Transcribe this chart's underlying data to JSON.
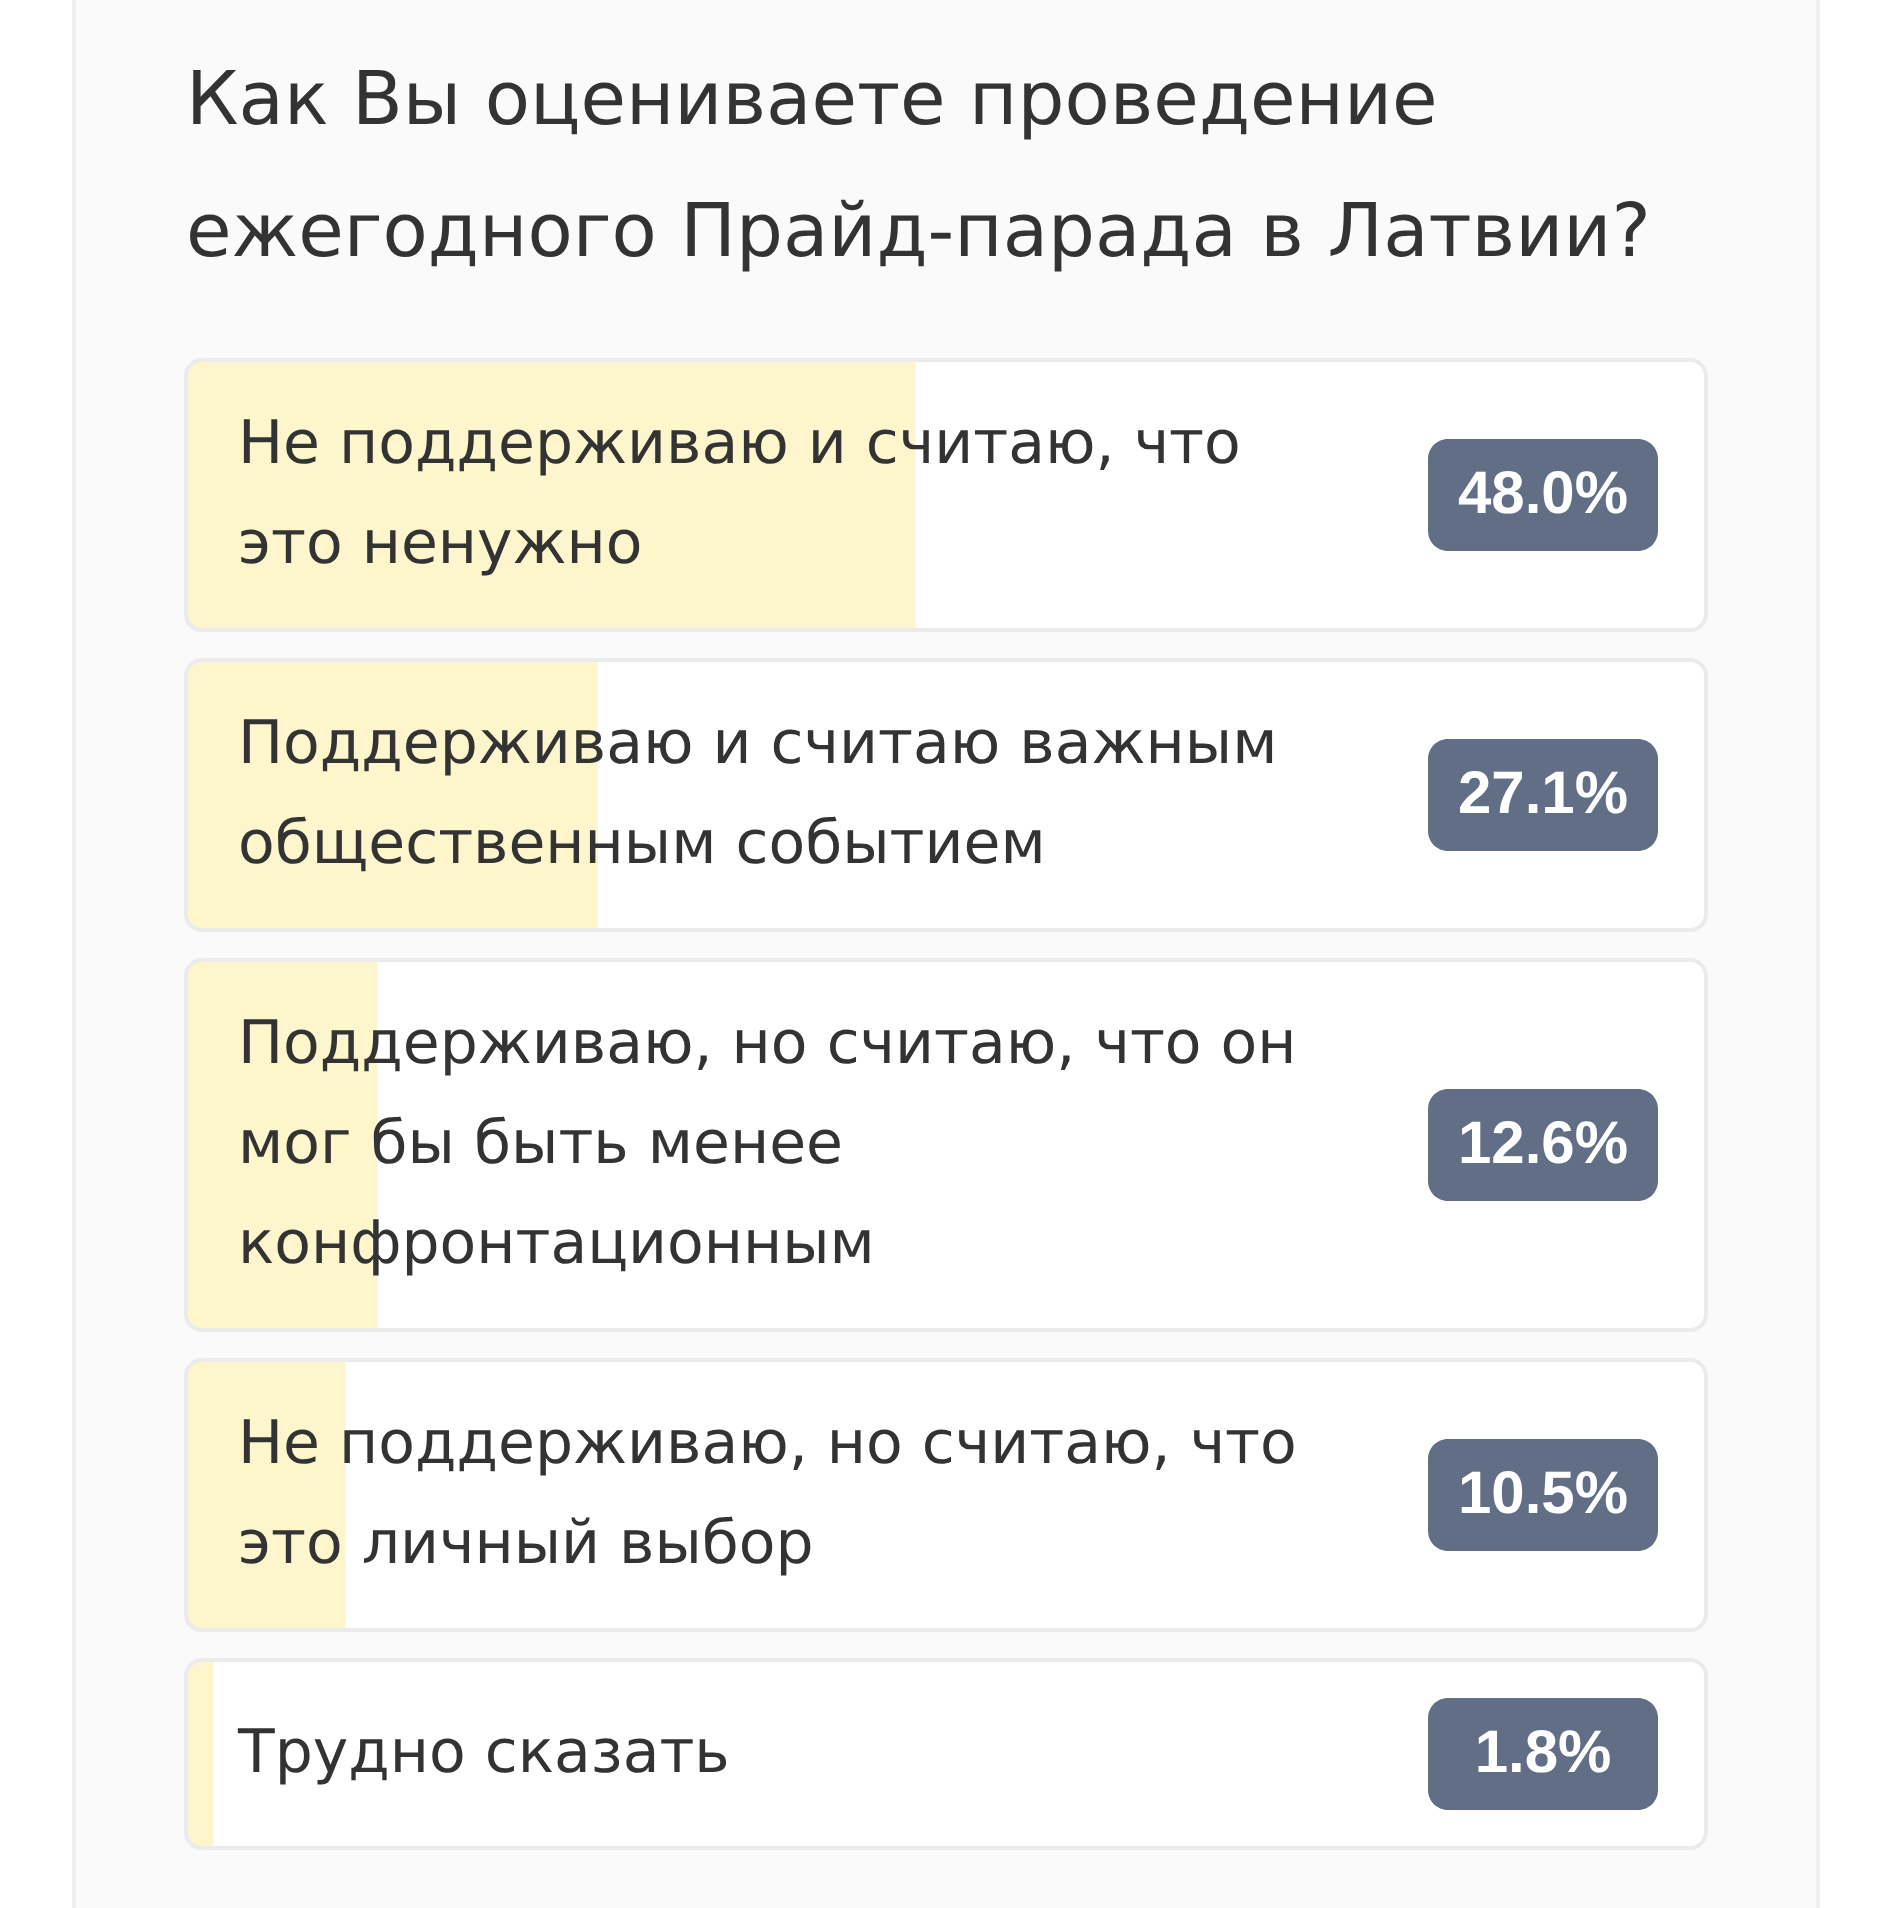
{
  "chart_data": {
    "type": "bar",
    "orientation": "horizontal",
    "title": "Как Вы оцениваете проведение ежегодного Прайд-парада в Латвии?",
    "categories": [
      "Не поддерживаю и считаю, что это ненужно",
      "Поддерживаю и считаю важным общественным событием",
      "Поддерживаю, но считаю, что он мог бы быть менее конфронтационным",
      "Не поддерживаю, но считаю, что это личный выбор",
      "Трудно сказать"
    ],
    "values": [
      48.0,
      27.1,
      12.6,
      10.5,
      1.8
    ],
    "value_labels": [
      "48.0%",
      "27.1%",
      "12.6%",
      "10.5%",
      "1.8%"
    ],
    "color": "#fdf6cc",
    "xlim": [
      0,
      100
    ],
    "tick_labels": false
  }
}
